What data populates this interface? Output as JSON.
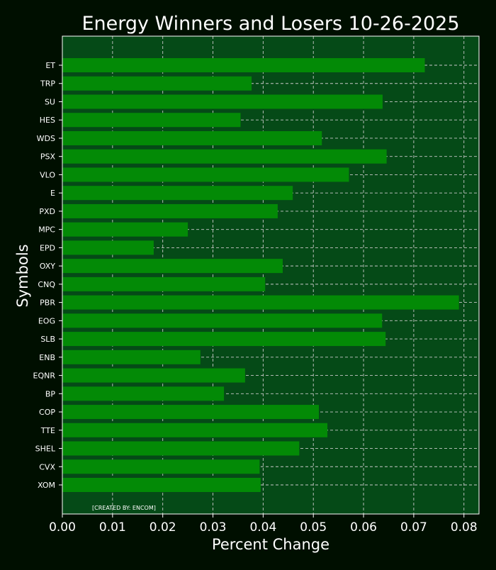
{
  "chart_data": {
    "type": "bar",
    "orientation": "horizontal",
    "title": "Energy Winners and Losers 10-26-2025",
    "xlabel": "Percent Change",
    "ylabel": "Symbols",
    "xlim": [
      0,
      0.083
    ],
    "xticks": [
      "0.00",
      "0.01",
      "0.02",
      "0.03",
      "0.04",
      "0.05",
      "0.06",
      "0.07",
      "0.08"
    ],
    "grid": true,
    "categories": [
      "ET",
      "TRP",
      "SU",
      "HES",
      "WDS",
      "PSX",
      "VLO",
      "E",
      "PXD",
      "MPC",
      "EPD",
      "OXY",
      "CNQ",
      "PBR",
      "EOG",
      "SLB",
      "ENB",
      "EQNR",
      "BP",
      "COP",
      "TTE",
      "SHEL",
      "CVX",
      "XOM"
    ],
    "values": [
      0.0722,
      0.0377,
      0.0638,
      0.0355,
      0.0517,
      0.0646,
      0.0571,
      0.0459,
      0.0429,
      0.025,
      0.0182,
      0.0439,
      0.0404,
      0.079,
      0.0637,
      0.0644,
      0.0275,
      0.0364,
      0.0322,
      0.0511,
      0.0528,
      0.0472,
      0.0393,
      0.0395
    ],
    "annotation": "[CREATED BY: ENCOM]",
    "colors": {
      "figure_bg": "#000f00",
      "plot_bg": "#054a17",
      "bar": "#038a06",
      "text": "#ffffff",
      "grid": "#c8c8c8"
    }
  }
}
